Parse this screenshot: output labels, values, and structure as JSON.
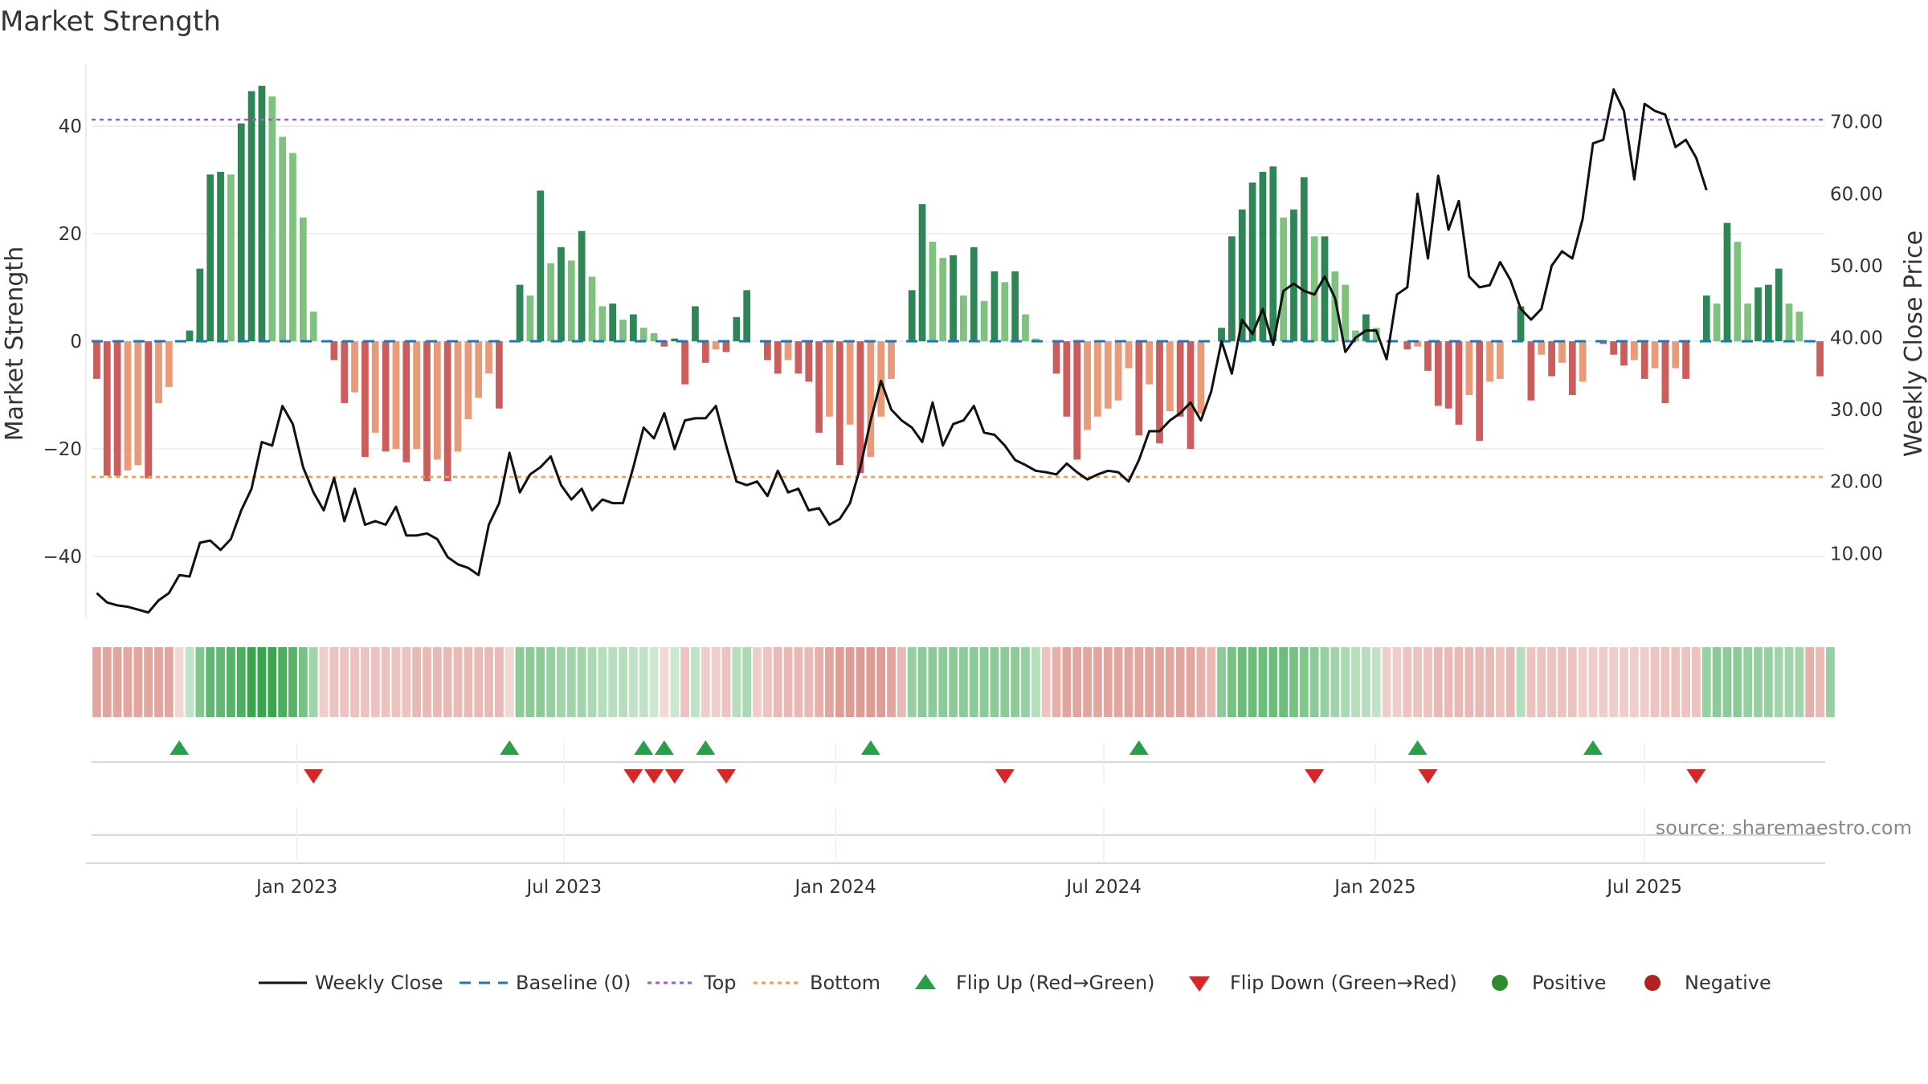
{
  "chart_data": {
    "type": "bar",
    "title": "Market Strength",
    "ylabel": "Market Strength",
    "y2label": "Weekly Close Price",
    "ylim": [
      -51.5,
      51.5
    ],
    "y2lim": [
      1.0,
      78.0
    ],
    "yticks": [
      40,
      20,
      0,
      -20,
      -40
    ],
    "ytick_labels": [
      "40",
      "20",
      "0",
      "−20",
      "−40"
    ],
    "y2ticks": [
      70,
      60,
      50,
      40,
      30,
      20,
      10
    ],
    "y2tick_labels": [
      "70.00",
      "60.00",
      "50.00",
      "40.00",
      "30.00",
      "20.00",
      "10.00"
    ],
    "top_level": 41.2,
    "bottom_level": -25.2,
    "x_ticks": [
      {
        "label": "Jan 2023",
        "index": 19.4
      },
      {
        "label": "Jul 2023",
        "index": 45.3
      },
      {
        "label": "Jan 2024",
        "index": 71.6
      },
      {
        "label": "Jul 2024",
        "index": 97.6
      },
      {
        "label": "Jan 2025",
        "index": 123.9
      },
      {
        "label": "Jul 2025",
        "index": 150.0
      }
    ],
    "strength": [
      -7,
      -25,
      -25,
      -24,
      -23,
      -25.5,
      -11.5,
      -8.5,
      0,
      2,
      13.5,
      31,
      31.5,
      31,
      40.5,
      46.5,
      47.5,
      45.5,
      38,
      35,
      23,
      5.5,
      0,
      -3.5,
      -11.5,
      -9.5,
      -21.5,
      -17,
      -20.5,
      -20,
      -22.5,
      -20,
      -26,
      -22,
      -26,
      -20.5,
      -14.5,
      -10.5,
      -6,
      -12.5,
      0,
      10.5,
      8.5,
      28,
      14.5,
      17.5,
      15,
      20.5,
      12,
      6.5,
      7,
      4,
      5,
      2.5,
      1.5,
      -1,
      0.5,
      -8,
      6.5,
      -4,
      -1.5,
      -2,
      4.5,
      9.5,
      0,
      -3.5,
      -6,
      -3.5,
      -6,
      -7.5,
      -17,
      -14,
      -23,
      -15.5,
      -24.5,
      -21.5,
      -14,
      -7,
      0,
      9.5,
      25.5,
      18.5,
      15.5,
      16,
      8.5,
      17.5,
      7.5,
      13,
      11,
      13,
      5,
      0.5,
      0,
      -6,
      -14,
      -22,
      -16.5,
      -14,
      -12.5,
      -11,
      -5,
      -17.5,
      -8,
      -19,
      -13,
      -14,
      -20,
      -13.5,
      0,
      2.5,
      19.5,
      24.5,
      29.5,
      31.5,
      32.5,
      23,
      24.5,
      30.5,
      19.5,
      19.5,
      13,
      10.5,
      2,
      5,
      2.5,
      0,
      0,
      -1.5,
      -1,
      -5.5,
      -12,
      -12.5,
      -15.5,
      -10,
      -18.5,
      -7.5,
      -7,
      0,
      6.5,
      -11,
      -2.5,
      -6.5,
      -4,
      -10,
      -7.5,
      0,
      -0.5,
      -2.5,
      -4.5,
      -3.5,
      -7,
      -5,
      -11.5,
      -5,
      -7,
      0,
      8.5,
      7,
      22,
      18.5,
      7,
      10,
      10.5,
      13.5,
      7,
      5.5,
      0,
      -6.5
    ],
    "price": [
      4.5,
      3.2,
      2.8,
      2.6,
      2.2,
      1.8,
      3.5,
      4.5,
      7,
      6.8,
      11.5,
      11.8,
      10.5,
      12,
      16,
      19,
      25.5,
      25,
      30.5,
      28,
      22,
      18.5,
      16,
      20.5,
      14.5,
      19,
      14,
      14.5,
      14,
      16.5,
      12.5,
      12.5,
      12.8,
      12,
      9.5,
      8.5,
      8,
      7,
      14,
      17,
      24,
      18.5,
      21,
      22,
      23.5,
      19.5,
      17.5,
      19,
      16,
      17.5,
      17,
      17,
      22,
      27.5,
      26,
      29.5,
      24.5,
      28.5,
      28.8,
      28.8,
      30.5,
      25,
      20,
      19.5,
      20,
      18,
      21.5,
      18.5,
      19,
      16,
      16.3,
      14,
      14.8,
      17,
      22,
      28.5,
      34,
      30,
      28.5,
      27.5,
      25.5,
      31,
      25,
      28,
      28.5,
      30.5,
      26.8,
      26.5,
      25,
      23,
      22.3,
      21.5,
      21.3,
      21,
      22.5,
      21.3,
      20.3,
      21,
      21.5,
      21.3,
      20,
      23,
      27,
      27,
      28.5,
      29.5,
      31,
      28.5,
      32.5,
      39.5,
      35,
      42.5,
      40.5,
      44,
      39,
      46.5,
      47.5,
      46.5,
      46,
      48.5,
      45.5,
      38,
      40,
      41,
      41,
      37,
      46,
      47,
      60,
      51,
      62.5,
      55,
      59,
      48.5,
      47,
      47.3,
      50.5,
      48,
      44,
      42.5,
      44,
      50,
      52,
      51,
      56.5,
      67,
      67.5,
      74.5,
      71.5,
      62,
      72.5,
      71.5,
      71,
      66.5,
      67.5,
      65,
      60.5
    ],
    "regime_shade": [
      0.45,
      0.45,
      0.45,
      0.45,
      0.45,
      0.45,
      0.45,
      0.45,
      0.2,
      0.3,
      0.6,
      0.75,
      0.75,
      0.8,
      0.85,
      0.95,
      0.95,
      0.95,
      0.85,
      0.8,
      0.65,
      0.45,
      0.25,
      0.3,
      0.3,
      0.3,
      0.3,
      0.3,
      0.3,
      0.3,
      0.3,
      0.35,
      0.35,
      0.35,
      0.35,
      0.35,
      0.35,
      0.35,
      0.35,
      0.35,
      0.2,
      0.55,
      0.55,
      0.55,
      0.5,
      0.45,
      0.45,
      0.45,
      0.4,
      0.35,
      0.35,
      0.35,
      0.3,
      0.3,
      0.25,
      0.2,
      0.25,
      0.3,
      0.3,
      0.25,
      0.25,
      0.3,
      0.35,
      0.4,
      0.25,
      0.3,
      0.35,
      0.35,
      0.35,
      0.35,
      0.4,
      0.45,
      0.5,
      0.5,
      0.5,
      0.5,
      0.5,
      0.45,
      0.35,
      0.5,
      0.55,
      0.55,
      0.55,
      0.55,
      0.55,
      0.55,
      0.55,
      0.55,
      0.55,
      0.55,
      0.5,
      0.35,
      0.3,
      0.4,
      0.45,
      0.45,
      0.45,
      0.45,
      0.45,
      0.45,
      0.45,
      0.45,
      0.45,
      0.45,
      0.45,
      0.45,
      0.45,
      0.4,
      0.35,
      0.55,
      0.65,
      0.7,
      0.7,
      0.7,
      0.7,
      0.7,
      0.65,
      0.6,
      0.55,
      0.5,
      0.45,
      0.4,
      0.35,
      0.35,
      0.3,
      0.25,
      0.25,
      0.3,
      0.3,
      0.3,
      0.35,
      0.35,
      0.35,
      0.35,
      0.35,
      0.35,
      0.3,
      0.35,
      0.35,
      0.3,
      0.3,
      0.3,
      0.3,
      0.3,
      0.25,
      0.25,
      0.25,
      0.25,
      0.25,
      0.25,
      0.25,
      0.3,
      0.3,
      0.3,
      0.3,
      0.3,
      0.5,
      0.55,
      0.55,
      0.55,
      0.5,
      0.5,
      0.5,
      0.45,
      0.45,
      0.45,
      0.4,
      0.35,
      0.5
    ],
    "flip_up_index": [
      8,
      40,
      53,
      55,
      59,
      75,
      101,
      128,
      145
    ],
    "flip_down_index": [
      21,
      52,
      54,
      56,
      61,
      88,
      118,
      129,
      155
    ],
    "legend": [
      {
        "label": "Weekly Close",
        "kind": "line",
        "color": "#111111"
      },
      {
        "label": "Baseline (0)",
        "kind": "dash",
        "color": "#1f77b4"
      },
      {
        "label": "Top",
        "kind": "dot",
        "color": "#9467bd"
      },
      {
        "label": "Bottom",
        "kind": "dot",
        "color": "#f39c5a"
      },
      {
        "label": "Flip Up (Red→Green)",
        "kind": "tri-up",
        "color": "#27a048"
      },
      {
        "label": "Flip Down (Green→Red)",
        "kind": "tri-down",
        "color": "#d62728"
      },
      {
        "label": "Positive",
        "kind": "dot-marker",
        "color": "#2e8b2e"
      },
      {
        "label": "Negative",
        "kind": "dot-marker",
        "color": "#b22222"
      }
    ]
  },
  "source": "source: sharemaestro.com",
  "colors": {
    "pos_dark": "#2e8555",
    "pos_light": "#7fc17f",
    "neg_dark": "#cd5c5c",
    "neg_light": "#e99a78",
    "baseline": "#1f77b4",
    "top": "#9467bd",
    "bottom": "#f39c5a",
    "price": "#111111",
    "grid": "#ececec",
    "flip_up": "#27a048",
    "flip_down": "#d62728"
  }
}
